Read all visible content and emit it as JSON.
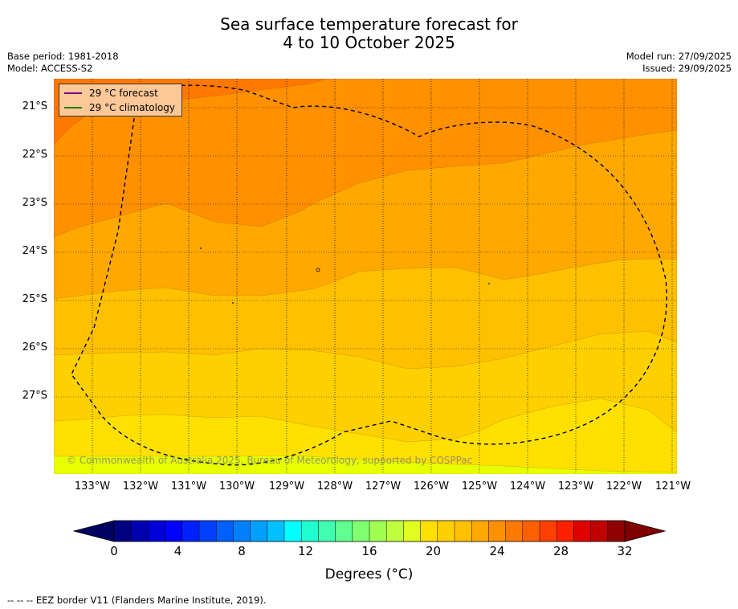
{
  "title_line1": "Sea surface temperature forecast for",
  "title_line2": "4 to 10 October 2025",
  "base_period": "Base period: 1981-2018",
  "model": "Model: ACCESS-S2",
  "model_run": "Model run: 27/09/2025",
  "issued": "Issued: 29/09/2025",
  "legend": {
    "forecast_label": "29 °C  forecast",
    "forecast_color": "#800080",
    "climatology_label": "29 °C  climatology",
    "climatology_color": "#008000"
  },
  "watermark": "© Commonwealth of Australia 2025, Bureau of Meteorology, supported by COSPPac",
  "lat_labels": [
    "21°S",
    "22°S",
    "23°S",
    "24°S",
    "25°S",
    "26°S",
    "27°S"
  ],
  "lon_labels": [
    "133°W",
    "132°W",
    "131°W",
    "130°W",
    "129°W",
    "128°W",
    "127°W",
    "126°W",
    "125°W",
    "124°W",
    "123°W",
    "122°W",
    "121°W"
  ],
  "colorbar": {
    "ticks": [
      "0",
      "4",
      "8",
      "12",
      "16",
      "20",
      "24",
      "28",
      "32"
    ],
    "title": "Degrees (°C)",
    "colors": [
      "#000080",
      "#0000b0",
      "#0000d8",
      "#0000ff",
      "#0020ff",
      "#0040ff",
      "#0060ff",
      "#0080ff",
      "#00a0ff",
      "#00c0ff",
      "#00ffff",
      "#20ffd0",
      "#40ffb0",
      "#60ff90",
      "#80ff70",
      "#a0ff50",
      "#c0ff40",
      "#e0ff20",
      "#ffe000",
      "#ffd000",
      "#ffc000",
      "#ffa800",
      "#ff9000",
      "#ff7800",
      "#ff6000",
      "#ff4000",
      "#ff2000",
      "#e00000",
      "#c00000",
      "#900000"
    ],
    "low_color": "#000060",
    "high_color": "#800000"
  },
  "map_colors": {
    "c27": "#ff7800",
    "c26": "#ff9000",
    "c25": "#ffa800",
    "c24": "#ffc000",
    "c23": "#ffd000",
    "c22": "#ffe000",
    "c21": "#e8ff00"
  },
  "footnote": "-- -- -- EEZ border V11 (Flanders Marine Institute, 2019)."
}
